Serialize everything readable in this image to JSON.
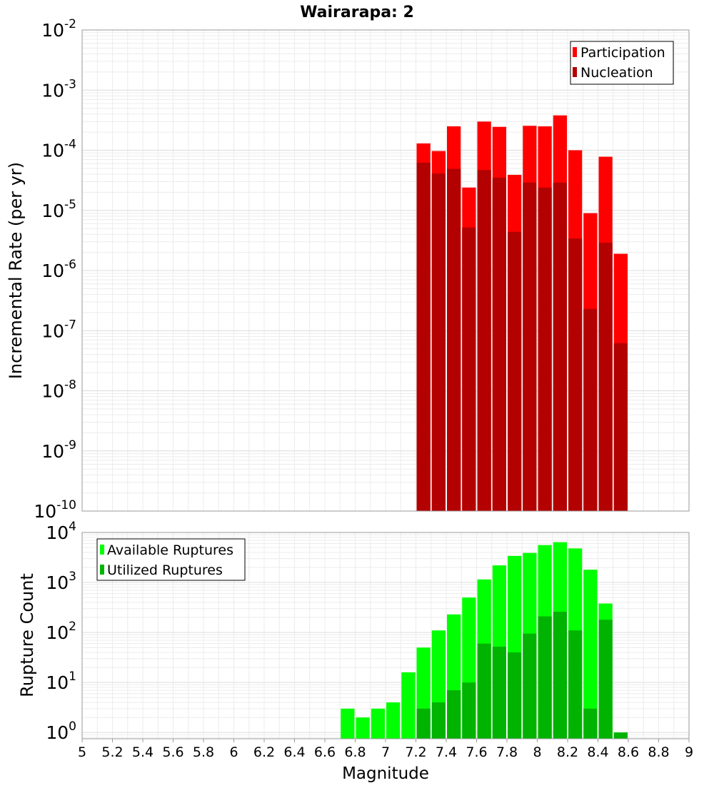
{
  "chart_data": [
    {
      "type": "bar",
      "title": "Wairarapa: 2",
      "xlabel": "",
      "ylabel": "Incremental Rate (per yr)",
      "xlim": [
        5,
        9
      ],
      "ylim": [
        1e-10,
        0.01
      ],
      "yscale": "log",
      "grid": true,
      "legend_position": "top-right",
      "bin_width": 0.1,
      "ytick_exponents": [
        "-10",
        "-9",
        "-8",
        "-7",
        "-6",
        "-5",
        "-4",
        "-3",
        "-2"
      ],
      "series": [
        {
          "name": "Participation",
          "color": "#ff0000",
          "points": [
            [
              7.25,
              0.00013
            ],
            [
              7.35,
              9.7e-05
            ],
            [
              7.45,
              0.00025
            ],
            [
              7.55,
              2.4e-05
            ],
            [
              7.65,
              0.0003
            ],
            [
              7.75,
              0.000245
            ],
            [
              7.85,
              3.9e-05
            ],
            [
              7.95,
              0.000255
            ],
            [
              8.05,
              0.00025
            ],
            [
              8.15,
              0.00038
            ],
            [
              8.25,
              0.0001
            ],
            [
              8.35,
              9e-06
            ],
            [
              8.45,
              7.8e-05
            ],
            [
              8.55,
              1.9e-06
            ]
          ]
        },
        {
          "name": "Nucleation",
          "color": "#b30000",
          "points": [
            [
              7.25,
              6.2e-05
            ],
            [
              7.35,
              4.1e-05
            ],
            [
              7.45,
              4.9e-05
            ],
            [
              7.55,
              5.2e-06
            ],
            [
              7.65,
              4.7e-05
            ],
            [
              7.75,
              3.5e-05
            ],
            [
              7.85,
              4.4e-06
            ],
            [
              7.95,
              2.9e-05
            ],
            [
              8.05,
              2.4e-05
            ],
            [
              8.15,
              2.9e-05
            ],
            [
              8.25,
              3.4e-06
            ],
            [
              8.35,
              2.3e-07
            ],
            [
              8.45,
              2.9e-06
            ],
            [
              8.55,
              6.2e-08
            ]
          ]
        }
      ]
    },
    {
      "type": "bar",
      "title": "",
      "xlabel": "Magnitude",
      "ylabel": "Rupture Count",
      "xlim": [
        5,
        9
      ],
      "ylim": [
        0.75,
        10000
      ],
      "yscale": "log",
      "grid": true,
      "legend_position": "top-left",
      "bin_width": 0.1,
      "xticks": [
        "5",
        "5.2",
        "5.4",
        "5.6",
        "5.8",
        "6",
        "6.2",
        "6.4",
        "6.6",
        "6.8",
        "7",
        "7.2",
        "7.4",
        "7.6",
        "7.8",
        "8",
        "8.2",
        "8.4",
        "8.6",
        "8.8",
        "9"
      ],
      "ytick_exponents": [
        "0",
        "1",
        "2",
        "3",
        "4"
      ],
      "series": [
        {
          "name": "Available Ruptures",
          "color": "#00ff00",
          "points": [
            [
              6.75,
              3
            ],
            [
              6.85,
              2
            ],
            [
              6.95,
              3
            ],
            [
              7.05,
              4
            ],
            [
              7.15,
              16
            ],
            [
              7.25,
              50
            ],
            [
              7.35,
              110
            ],
            [
              7.45,
              230
            ],
            [
              7.55,
              500
            ],
            [
              7.65,
              1150
            ],
            [
              7.75,
              2200
            ],
            [
              7.85,
              3400
            ],
            [
              7.95,
              3900
            ],
            [
              8.05,
              5600
            ],
            [
              8.15,
              6400
            ],
            [
              8.25,
              4800
            ],
            [
              8.35,
              1800
            ],
            [
              8.45,
              380
            ],
            [
              8.55,
              1
            ]
          ]
        },
        {
          "name": "Utilized Ruptures",
          "color": "#00b300",
          "points": [
            [
              7.25,
              3
            ],
            [
              7.35,
              4
            ],
            [
              7.45,
              7
            ],
            [
              7.55,
              10
            ],
            [
              7.65,
              60
            ],
            [
              7.75,
              52
            ],
            [
              7.85,
              40
            ],
            [
              7.95,
              95
            ],
            [
              8.05,
              210
            ],
            [
              8.15,
              260
            ],
            [
              8.25,
              110
            ],
            [
              8.35,
              3
            ],
            [
              8.45,
              180
            ],
            [
              8.55,
              1
            ]
          ]
        }
      ]
    }
  ]
}
